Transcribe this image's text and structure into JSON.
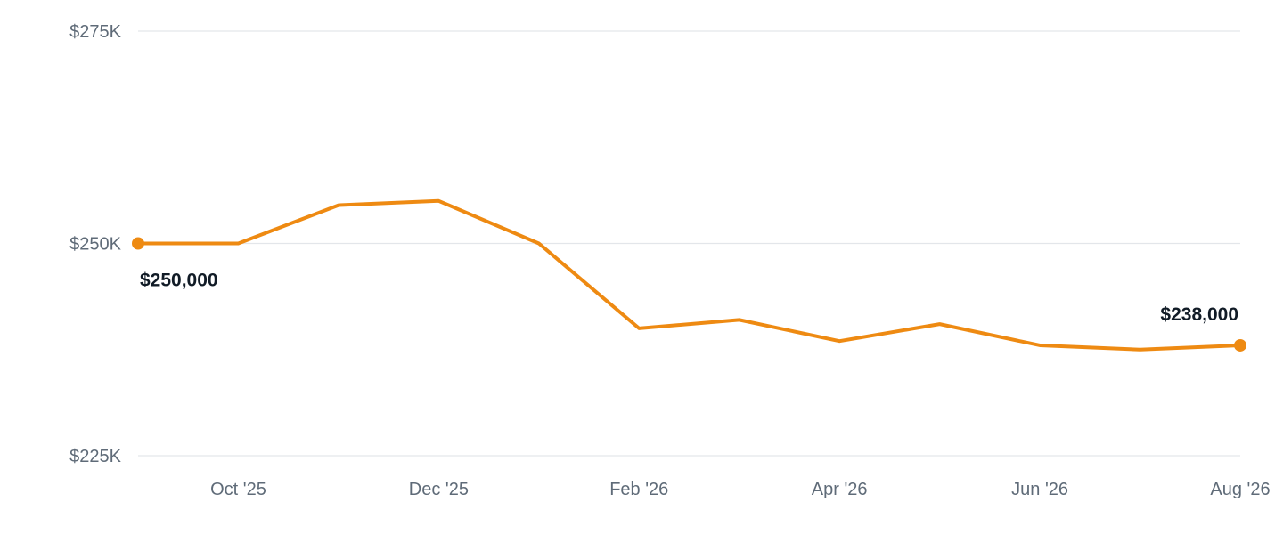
{
  "chart_data": {
    "type": "line",
    "title": "",
    "xlabel": "",
    "ylabel": "",
    "ylim": [
      225000,
      275000
    ],
    "yticks": [
      225000,
      250000,
      275000
    ],
    "ytick_labels": [
      "$225K",
      "$250K",
      "$275K"
    ],
    "grid": true,
    "x": [
      "Sep '25",
      "Oct '25",
      "Nov '25",
      "Dec '25",
      "Jan '26",
      "Feb '26",
      "Mar '26",
      "Apr '26",
      "May '26",
      "Jun '26",
      "Jul '26",
      "Aug '26"
    ],
    "xtick_labels": [
      "Oct '25",
      "Dec '25",
      "Feb '26",
      "Apr '26",
      "Jun '26",
      "Aug '26"
    ],
    "series": [
      {
        "values": [
          250000,
          250000,
          254500,
          255000,
          250000,
          240000,
          241000,
          238500,
          240500,
          238000,
          237500,
          238000
        ]
      }
    ],
    "annotations": [
      {
        "index": 0,
        "text": "$250,000"
      },
      {
        "index": 11,
        "text": "$238,000"
      }
    ],
    "colors": {
      "line": "#ee8a12",
      "grid": "#e3e6ea",
      "tick_text": "#5f6b78",
      "annotation_text": "#111b26"
    }
  }
}
